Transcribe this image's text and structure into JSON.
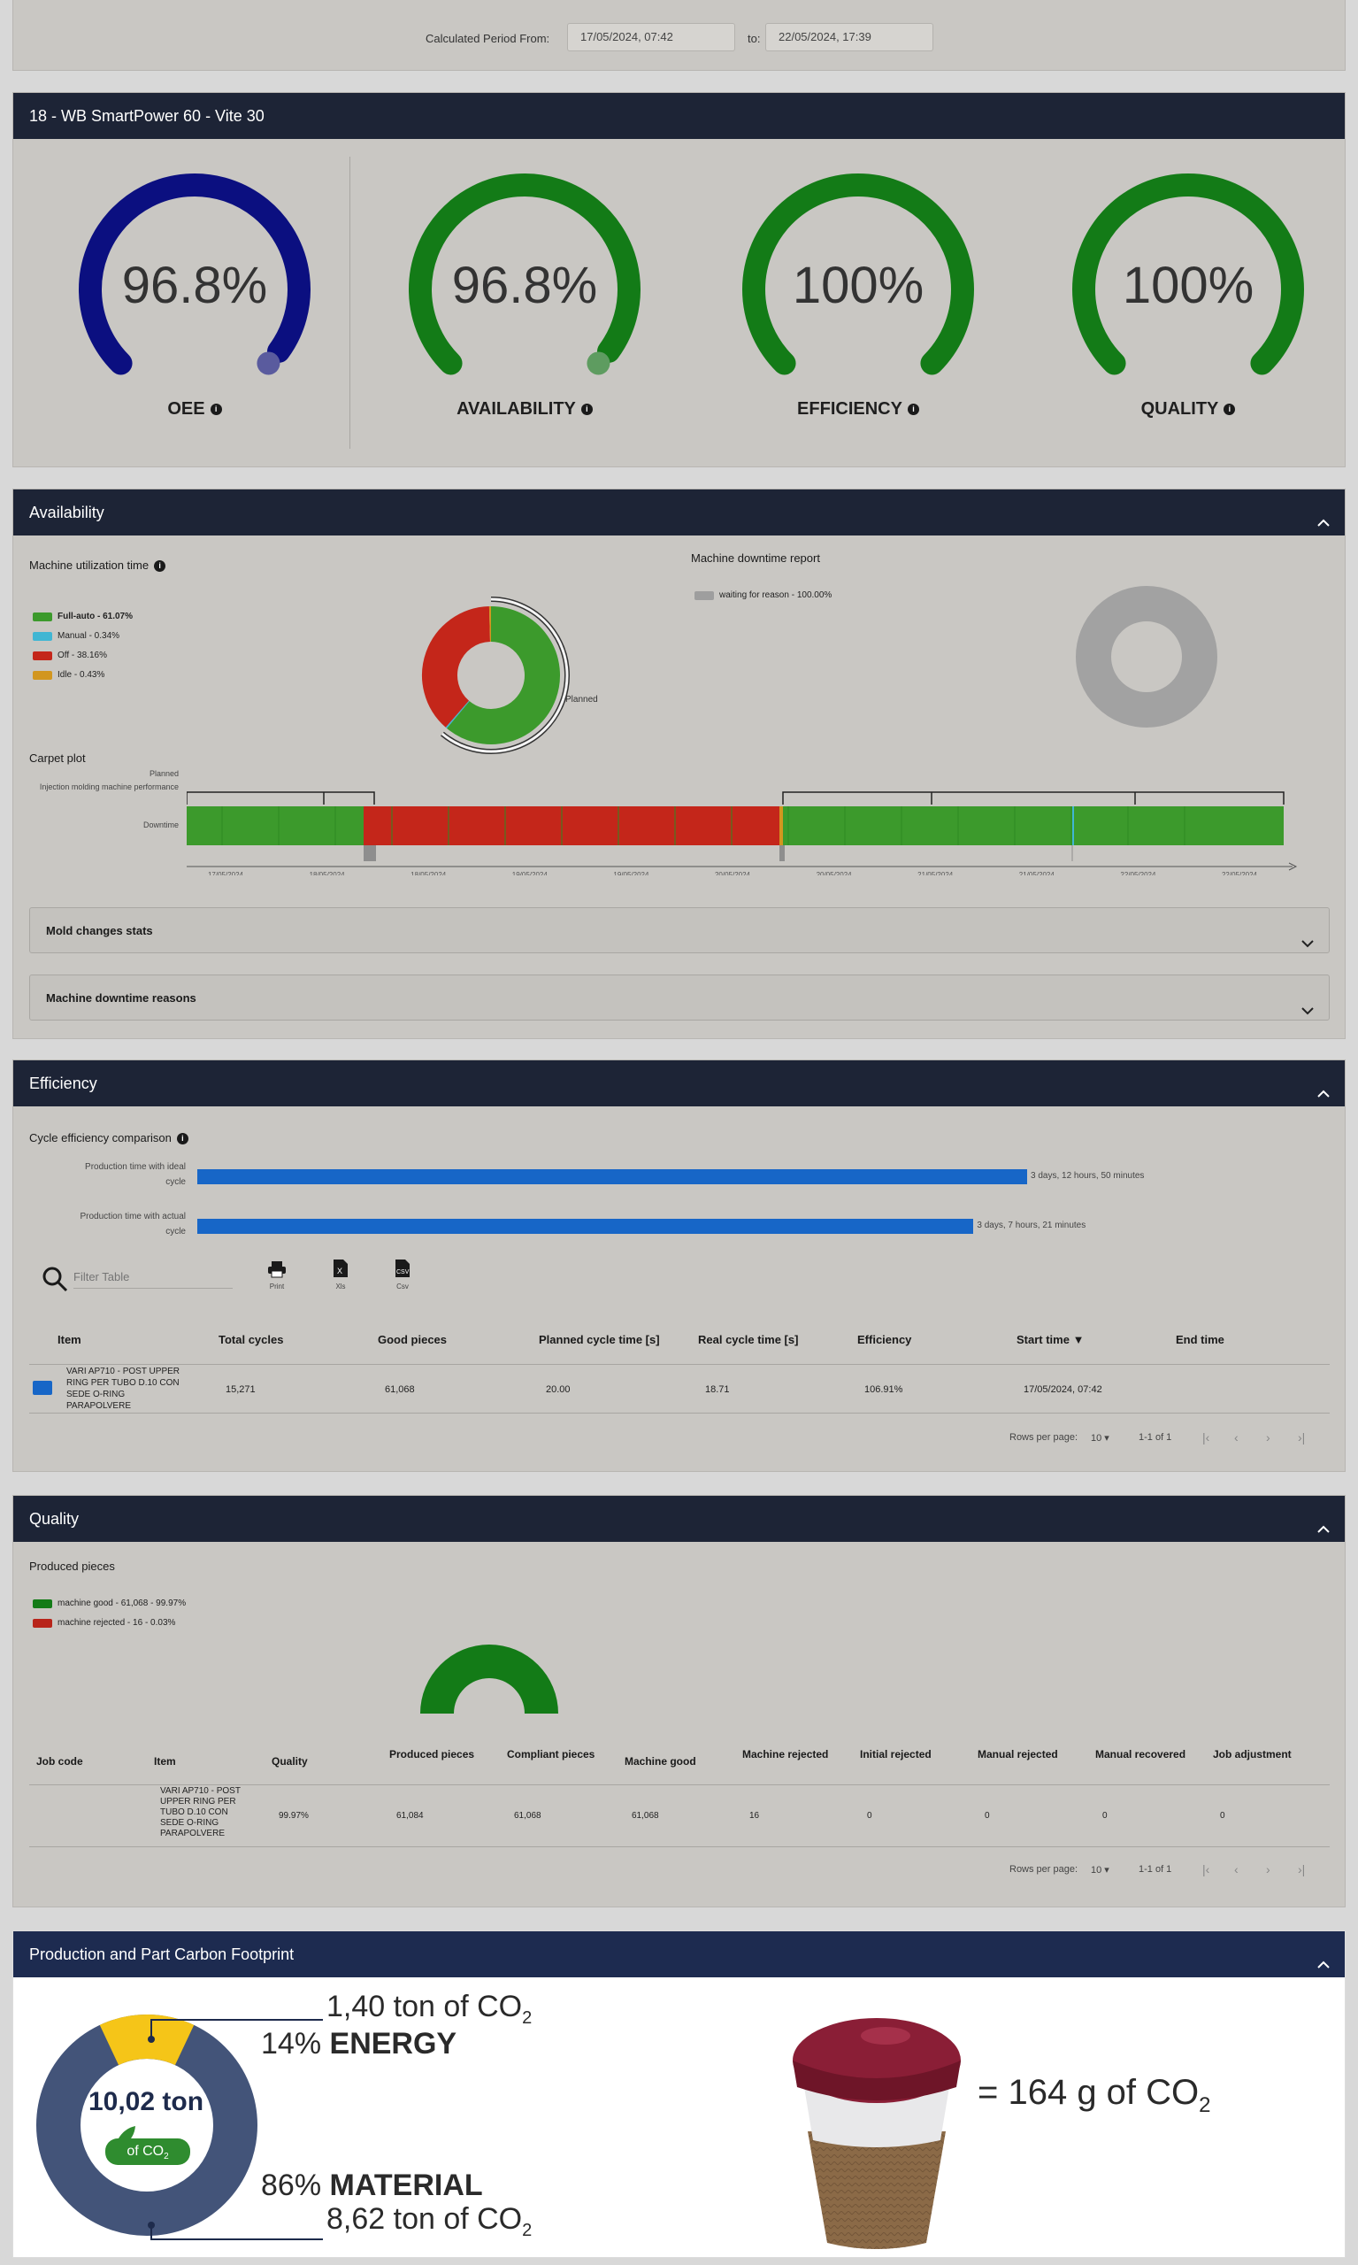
{
  "period": {
    "from_label": "Calculated Period From:",
    "from_value": "17/05/2024, 07:42",
    "to_label": "to:",
    "to_value": "22/05/2024, 17:39"
  },
  "machine": {
    "title": "18 - WB SmartPower 60 - Vite 30"
  },
  "gauges": [
    {
      "label": "OEE",
      "value": "96.8%",
      "fraction": 0.968,
      "color": "#0b0f80",
      "tail": "#5a5b9e"
    },
    {
      "label": "AVAILABILITY",
      "value": "96.8%",
      "fraction": 0.968,
      "color": "#137b17",
      "tail": "#5e9c60"
    },
    {
      "label": "EFFICIENCY",
      "value": "100%",
      "fraction": 1.0,
      "color": "#137b17",
      "tail": "#137b17"
    },
    {
      "label": "QUALITY",
      "value": "100%",
      "fraction": 1.0,
      "color": "#137b17",
      "tail": "#137b17"
    }
  ],
  "availability": {
    "title": "Availability",
    "utilization_title": "Machine utilization time",
    "legend": [
      {
        "label": "Full-auto - 61.07%",
        "color": "#3c9a2c",
        "pct": 61.07
      },
      {
        "label": "Manual - 0.34%",
        "color": "#40b6d3",
        "pct": 0.34
      },
      {
        "label": "Off - 38.16%",
        "color": "#c4261a",
        "pct": 38.16
      },
      {
        "label": "Idle - 0.43%",
        "color": "#d2961f",
        "pct": 0.43
      }
    ],
    "planned_label": "Planned",
    "downtime_title": "Machine downtime report",
    "downtime_legend": [
      {
        "label": "waiting for reason - 100.00%",
        "color": "#9e9e9e",
        "pct": 100
      }
    ],
    "carpet": {
      "title": "Carpet plot",
      "row_planned": "Planned",
      "row_perf": "Injection molding machine performance",
      "row_downtime": "Downtime",
      "ticks": [
        {
          "d": "17/05/2024",
          "t": "12:00"
        },
        {
          "d": "18/05/2024",
          "t": "00:00"
        },
        {
          "d": "18/05/2024",
          "t": "12:00"
        },
        {
          "d": "19/05/2024",
          "t": "00:00"
        },
        {
          "d": "19/05/2024",
          "t": "12:00"
        },
        {
          "d": "20/05/2024",
          "t": "00:00"
        },
        {
          "d": "20/05/2024",
          "t": "12:00"
        },
        {
          "d": "21/05/2024",
          "t": "00:00"
        },
        {
          "d": "21/05/2024",
          "t": "12:00"
        },
        {
          "d": "22/05/2024",
          "t": "00:00"
        },
        {
          "d": "22/05/2024",
          "t": "12:00"
        }
      ]
    },
    "mold_changes": "Mold changes stats",
    "downtime_reasons": "Machine downtime reasons"
  },
  "efficiency": {
    "title": "Efficiency",
    "comparison_title": "Cycle efficiency comparison",
    "bars": [
      {
        "label1": "Production time with ideal",
        "label2": "cycle",
        "value_text": "3 days, 12 hours, 50 minutes",
        "hours": 84.83
      },
      {
        "label1": "Production time with actual",
        "label2": "cycle",
        "value_text": "3 days, 7 hours, 21 minutes",
        "hours": 79.35
      }
    ],
    "filter_placeholder": "Filter Table",
    "tools": [
      "Print",
      "Xls",
      "Csv"
    ],
    "columns": [
      "Item",
      "Total cycles",
      "Good pieces",
      "Planned cycle time [s]",
      "Real cycle time [s]",
      "Efficiency",
      "Start time ▼",
      "End time"
    ],
    "row": {
      "item": [
        "VARI AP710 - POST UPPER",
        "RING PER TUBO D.10 CON",
        "SEDE O-RING",
        "PARAPOLVERE"
      ],
      "total_cycles": "15,271",
      "good_pieces": "61,068",
      "planned": "20.00",
      "real": "18.71",
      "efficiency": "106.91%",
      "start": "17/05/2024, 07:42",
      "end": ""
    },
    "pager": {
      "rows_label": "Rows per page:",
      "rows": "10",
      "range": "1-1 of 1"
    }
  },
  "quality": {
    "title": "Quality",
    "produced_title": "Produced pieces",
    "legend": [
      {
        "label": "machine good - 61,068 - 99.97%",
        "color": "#137b17",
        "pct": 99.97
      },
      {
        "label": "machine rejected - 16 - 0.03%",
        "color": "#b8241a",
        "pct": 0.03
      }
    ],
    "columns": [
      "Job code",
      "Item",
      "Quality",
      "Produced pieces",
      "Compliant pieces",
      "Machine good",
      "Machine rejected",
      "Initial rejected",
      "Manual rejected",
      "Manual recovered",
      "Job adjustment"
    ],
    "row": {
      "job": "",
      "item": [
        "VARI AP710 - POST",
        "UPPER RING PER",
        "TUBO D.10 CON",
        "SEDE O-RING",
        "PARAPOLVERE"
      ],
      "quality": "99.97%",
      "produced": "61,084",
      "compliant": "61,068",
      "good": "61,068",
      "mrej": "16",
      "irej": "0",
      "manrej": "0",
      "manrec": "0",
      "adj": "0"
    },
    "pager": {
      "rows_label": "Rows per page:",
      "rows": "10",
      "range": "1-1 of 1"
    }
  },
  "carbon": {
    "title": "Production and Part Carbon Footprint",
    "total": "10,02 ton",
    "total_unit": "of CO",
    "energy_pct": "14%",
    "energy_label": "ENERGY",
    "energy_value": "1,40 ton of CO",
    "material_pct": "86%",
    "material_label": "MATERIAL",
    "material_value": "8,62 ton of CO",
    "subscript": "2",
    "equivalent": "= 164 g of CO",
    "energy_fraction": 0.14
  }
}
